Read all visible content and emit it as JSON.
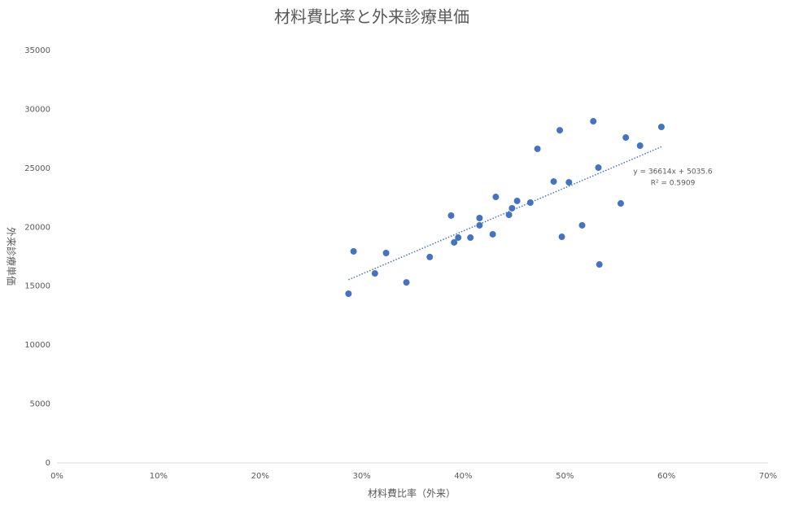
{
  "chart_data": {
    "type": "scatter",
    "title": "材料費比率と外来診療単価",
    "x_label": "材料費比率（外来）",
    "y_label": "外来診療単価",
    "color": "#4472c4",
    "grid": false,
    "x": [
      0.287,
      0.292,
      0.313,
      0.324,
      0.344,
      0.367,
      0.388,
      0.391,
      0.395,
      0.407,
      0.416,
      0.416,
      0.429,
      0.432,
      0.445,
      0.448,
      0.453,
      0.466,
      0.473,
      0.489,
      0.495,
      0.497,
      0.504,
      0.517,
      0.528,
      0.533,
      0.534,
      0.555,
      0.56,
      0.574,
      0.595
    ],
    "values": [
      14360,
      17950,
      16080,
      17810,
      15320,
      17470,
      20990,
      18710,
      19120,
      19120,
      20780,
      20160,
      19400,
      22570,
      21050,
      21610,
      22230,
      22090,
      26650,
      23880,
      28230,
      19190,
      23810,
      20160,
      28990,
      25060,
      16840,
      22020,
      27610,
      26920,
      28510
    ],
    "xlim": [
      0,
      0.7
    ],
    "xticks": [
      {
        "value": 0,
        "label": "0%"
      },
      {
        "value": 0.1,
        "label": "10%"
      },
      {
        "value": 0.2,
        "label": "20%"
      },
      {
        "value": 0.3,
        "label": "30%"
      },
      {
        "value": 0.4,
        "label": "40%"
      },
      {
        "value": 0.5,
        "label": "50%"
      },
      {
        "value": 0.6,
        "label": "60%"
      },
      {
        "value": 0.7,
        "label": "70%"
      }
    ],
    "ylim": [
      0,
      35000
    ],
    "yticks": [
      0,
      5000,
      10000,
      15000,
      20000,
      25000,
      30000,
      35000
    ],
    "trendline": {
      "equation": "y = 36614x + 5035.6",
      "r_squared": "R² = 0.5909",
      "slope": 36614,
      "intercept": 5035.6
    }
  }
}
